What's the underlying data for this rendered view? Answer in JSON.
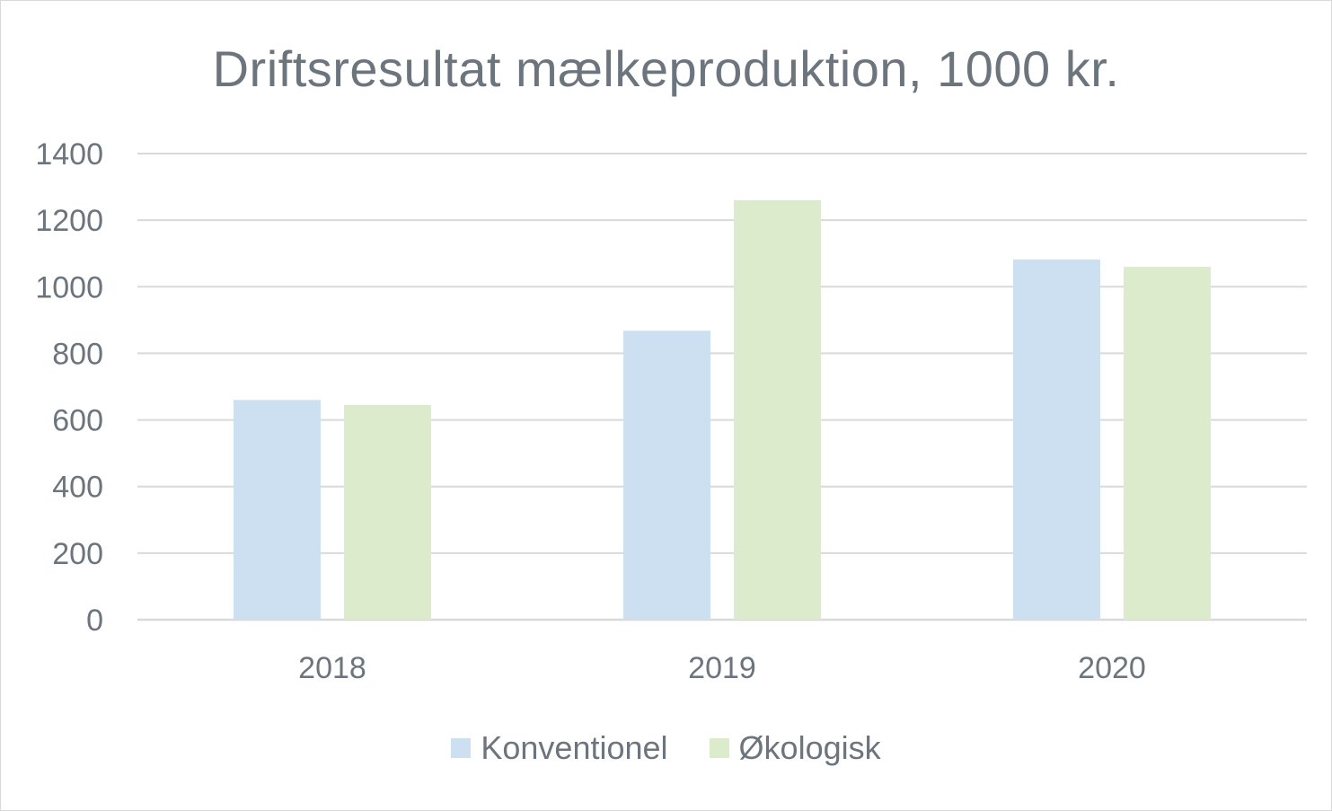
{
  "chart_data": {
    "type": "bar",
    "title": "Driftsresultat mælkeproduktion, 1000 kr.",
    "categories": [
      "2018",
      "2019",
      "2020"
    ],
    "series": [
      {
        "name": "Konventionel",
        "values": [
          660,
          868,
          1082
        ],
        "color": "#cce0f1"
      },
      {
        "name": "Økologisk",
        "values": [
          645,
          1260,
          1060
        ],
        "color": "#dbebcc"
      }
    ],
    "ylim": [
      0,
      1400
    ],
    "yticks": [
      "0",
      "200",
      "400",
      "600",
      "800",
      "1000",
      "1200",
      "1400"
    ],
    "grid": true,
    "legend_position": "bottom",
    "text_color": "#6c757d",
    "grid_color": "#d9d9d9"
  }
}
